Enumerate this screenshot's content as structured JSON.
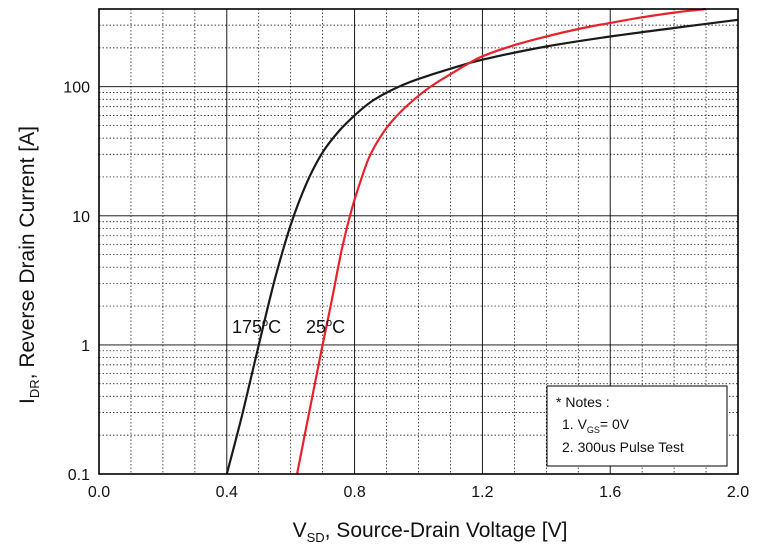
{
  "chart_data": {
    "type": "line",
    "xlabel": {
      "main": "V",
      "sub": "SD",
      "rest": ", Source-Drain Voltage [V]"
    },
    "ylabel": {
      "main": "I",
      "sub": "DR",
      "rest": ", Reverse Drain Current [A]"
    },
    "xlim": [
      0.0,
      2.0
    ],
    "ylim": [
      0.1,
      400
    ],
    "y_scale": "log",
    "grid": true,
    "x_ticks": [
      {
        "value": 0.0,
        "label": "0.0"
      },
      {
        "value": 0.4,
        "label": "0.4"
      },
      {
        "value": 0.8,
        "label": "0.8"
      },
      {
        "value": 1.2,
        "label": "1.2"
      },
      {
        "value": 1.6,
        "label": "1.6"
      },
      {
        "value": 2.0,
        "label": "2.0"
      }
    ],
    "y_ticks": [
      {
        "value": 0.1,
        "label": "0.1"
      },
      {
        "value": 1,
        "label": "1"
      },
      {
        "value": 10,
        "label": "10"
      },
      {
        "value": 100,
        "label": "100"
      }
    ],
    "series": [
      {
        "name": "175°C",
        "label_main": "175",
        "label_sup": "o",
        "label_unit": "C",
        "color": "#1a1a1a",
        "x": [
          0.4,
          0.45,
          0.5,
          0.55,
          0.6,
          0.65,
          0.7,
          0.75,
          0.8,
          0.85,
          0.9,
          0.95,
          1.0,
          1.1,
          1.2,
          1.4,
          1.6,
          1.8,
          2.0
        ],
        "y": [
          0.1,
          0.3,
          1.0,
          3.2,
          8.5,
          18,
          31,
          45,
          60,
          76,
          90,
          103,
          115,
          138,
          162,
          205,
          245,
          285,
          330
        ]
      },
      {
        "name": "25°C",
        "label_main": "25",
        "label_sup": "o",
        "label_unit": "C",
        "color": "#e8212b",
        "x": [
          0.62,
          0.66,
          0.7,
          0.73,
          0.76,
          0.79,
          0.82,
          0.85,
          0.9,
          0.95,
          1.0,
          1.05,
          1.1,
          1.15,
          1.2,
          1.3,
          1.4,
          1.5,
          1.6,
          1.7,
          1.8,
          1.9
        ],
        "y": [
          0.1,
          0.32,
          1.0,
          2.3,
          5.5,
          11,
          19,
          30,
          48,
          66,
          85,
          105,
          125,
          148,
          172,
          210,
          245,
          280,
          312,
          345,
          375,
          400
        ]
      }
    ],
    "notes": {
      "title": "* Notes :",
      "line1_prefix": "1. V",
      "line1_sub": "GS",
      "line1_suffix": "= 0V",
      "line2": "2. 300us Pulse Test"
    }
  }
}
